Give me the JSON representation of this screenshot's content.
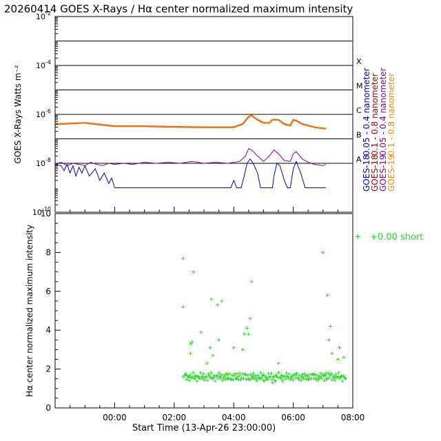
{
  "chart_data": [
    {
      "type": "line",
      "title": "20260414 GOES X-Rays / Hα center normalized maximum intensity",
      "ylabel": "GOES X-Rays Watts m⁻²",
      "yscale": "log",
      "ylim": [
        1e-10,
        0.01
      ],
      "y_ticks": [
        {
          "value": 1e-10,
          "base": "10",
          "exp": "-10"
        },
        {
          "value": 1e-08,
          "base": "10",
          "exp": "-8"
        },
        {
          "value": 1e-06,
          "base": "10",
          "exp": "-6"
        },
        {
          "value": 0.0001,
          "base": "10",
          "exp": "-4"
        },
        {
          "value": 0.01,
          "base": "10",
          "exp": "-2"
        }
      ],
      "xlim_hours": [
        -1.0,
        9.0
      ],
      "flare_class_lines": [
        1e-08,
        1e-07,
        1e-06,
        1e-05,
        0.0001,
        0.001
      ],
      "flare_classes": [
        {
          "label": "A",
          "value": 1e-08
        },
        {
          "label": "B",
          "value": 1e-07
        },
        {
          "label": "C",
          "value": 1e-06
        },
        {
          "label": "M",
          "value": 1e-05
        },
        {
          "label": "X",
          "value": 0.0001
        }
      ],
      "series": [
        {
          "name": "GOES-18 0.05 - 0.4 nanometer",
          "color": "#0000cc",
          "x": [
            -1.0,
            -0.8,
            -0.7,
            -0.6,
            -0.5,
            -0.4,
            -0.3,
            -0.2,
            -0.1,
            0.0,
            0.15,
            0.35,
            0.5,
            0.65,
            0.8,
            0.9,
            1.0,
            1.2,
            1.4,
            1.6,
            1.8,
            2.0,
            2.3,
            2.6,
            3.0,
            3.5,
            4.0,
            4.2,
            4.5,
            4.9,
            5.0,
            5.1,
            5.25,
            5.35,
            5.45,
            5.55,
            5.65,
            5.8,
            5.9,
            6.0,
            6.1,
            6.2,
            6.3,
            6.35,
            6.45,
            6.55,
            6.7,
            6.8,
            6.9,
            7.0,
            7.1,
            7.25,
            7.4,
            7.6,
            7.8,
            8.0,
            8.1
          ],
          "y": [
            9e-09,
            8e-09,
            5e-09,
            9e-09,
            4e-09,
            8e-09,
            3e-09,
            7e-09,
            4e-09,
            8e-09,
            3e-09,
            6e-09,
            2e-09,
            4e-09,
            1.5e-09,
            2.5e-09,
            1e-09,
            1e-09,
            1e-09,
            1e-09,
            1e-09,
            1e-09,
            1e-09,
            1e-09,
            1e-09,
            1e-09,
            1e-09,
            1e-09,
            1e-09,
            1e-09,
            2e-09,
            1e-09,
            1e-09,
            3e-09,
            1e-08,
            1.5e-08,
            1e-08,
            4e-09,
            1e-09,
            1e-09,
            1e-09,
            1e-09,
            1e-09,
            3e-09,
            1e-08,
            8e-09,
            2e-09,
            1e-09,
            1e-09,
            6e-09,
            1.2e-08,
            4e-09,
            1e-09,
            1e-09,
            1e-09,
            1e-09,
            1e-09
          ]
        },
        {
          "name": "GOES-18 0.1 - 0.8 nanometer",
          "color": "#aa0000",
          "x": [
            -1.0,
            0.0,
            1.0,
            2.0,
            3.0,
            4.0,
            5.0,
            5.3,
            5.5,
            5.6,
            5.8,
            6.0,
            6.2,
            6.3,
            6.5,
            6.7,
            6.9,
            7.0,
            7.1,
            7.3,
            7.5,
            7.7,
            8.0,
            8.1
          ],
          "y": [
            4e-07,
            4.5e-07,
            3.3e-07,
            3.3e-07,
            3.1e-07,
            3e-07,
            3e-07,
            4e-07,
            8e-07,
            9e-07,
            6e-07,
            4.5e-07,
            4.5e-07,
            6e-07,
            6e-07,
            4e-07,
            3.5e-07,
            6e-07,
            5.5e-07,
            4e-07,
            3.5e-07,
            3e-07,
            2.7e-07,
            2.6e-07
          ]
        },
        {
          "name": "GOES-19 0.05 - 0.4 nanometer",
          "color": "#880088",
          "x": [
            -1.0,
            -0.8,
            -0.6,
            -0.4,
            -0.2,
            0.0,
            0.2,
            0.4,
            0.6,
            0.8,
            1.0,
            1.3,
            1.6,
            2.0,
            2.4,
            2.8,
            3.2,
            3.6,
            4.0,
            4.4,
            4.8,
            5.2,
            5.4,
            5.5,
            5.6,
            5.8,
            6.0,
            6.2,
            6.35,
            6.5,
            6.7,
            6.9,
            7.0,
            7.1,
            7.3,
            7.5,
            7.7,
            8.0,
            8.1
          ],
          "y": [
            9e-09,
            1.1e-08,
            8e-09,
            1e-08,
            9e-09,
            8e-09,
            1.1e-08,
            9e-09,
            8e-09,
            1e-08,
            9e-09,
            1e-08,
            9e-09,
            1.1e-08,
            1e-08,
            1.1e-08,
            1e-08,
            1.2e-08,
            1e-08,
            1.1e-08,
            1e-08,
            1.2e-08,
            2e-08,
            4e-08,
            3.5e-08,
            2e-08,
            1.2e-08,
            2e-08,
            3.5e-08,
            2.5e-08,
            1.3e-08,
            1.2e-08,
            2.5e-08,
            3e-08,
            1.5e-08,
            1.1e-08,
            9e-09,
            8e-09,
            9e-09
          ]
        },
        {
          "name": "GOES-19 0.1 - 0.8 nanometer",
          "color": "#ff8800",
          "x": [
            -1.0,
            0.0,
            1.0,
            2.0,
            3.0,
            4.0,
            5.0,
            5.3,
            5.5,
            5.6,
            5.8,
            6.0,
            6.2,
            6.3,
            6.5,
            6.7,
            6.9,
            7.0,
            7.1,
            7.3,
            7.5,
            7.7,
            8.0,
            8.1
          ],
          "y": [
            4e-07,
            4.5e-07,
            3.3e-07,
            3.3e-07,
            3.1e-07,
            3e-07,
            3e-07,
            4e-07,
            8e-07,
            9e-07,
            6e-07,
            4.5e-07,
            4.5e-07,
            6e-07,
            6e-07,
            4e-07,
            3.5e-07,
            6e-07,
            5.5e-07,
            4e-07,
            3.5e-07,
            3e-07,
            2.7e-07,
            2.6e-07
          ]
        }
      ],
      "legend": [
        {
          "sat": "GOES-18",
          "range": "0.05 - 0.4 nanometer",
          "color": "#0000cc"
        },
        {
          "sat": "GOES-18",
          "range": "0.1  - 0.8 nanometer",
          "color": "#aa0000"
        },
        {
          "sat": "GOES-19",
          "range": "0.05 - 0.4 nanometer",
          "color": "#880088"
        },
        {
          "sat": "GOES-19",
          "range": "0.1  - 0.8 nanometer",
          "color": "#ff8800"
        }
      ]
    },
    {
      "type": "scatter",
      "title": "",
      "xlabel": "Start Time (13-Apr-26 23:00:00)",
      "ylabel": "Hα center normalized maximum intensity",
      "ylim": [
        0,
        10
      ],
      "y_ticks": [
        0,
        2,
        4,
        6,
        8,
        10
      ],
      "xlim_hours": [
        -1.0,
        9.0
      ],
      "x_ticks_hours": [
        1,
        3,
        5,
        7,
        9
      ],
      "x_tick_labels": [
        "00:00",
        "02:00",
        "04:00",
        "06:00",
        "08:00"
      ],
      "legend_label": "+0.00 short",
      "legend_marker": "+",
      "color": "#22dd22",
      "scatter_points": [
        [
          3.3,
          7.7
        ],
        [
          3.3,
          5.2
        ],
        [
          3.3,
          1.6
        ],
        [
          3.4,
          1.7
        ],
        [
          3.5,
          1.6
        ],
        [
          3.55,
          3.3
        ],
        [
          3.6,
          3.4
        ],
        [
          3.55,
          2.8
        ],
        [
          3.65,
          7.0
        ],
        [
          3.7,
          1.5
        ],
        [
          3.8,
          1.6
        ],
        [
          3.9,
          3.9
        ],
        [
          3.95,
          1.5
        ],
        [
          4.1,
          2.3
        ],
        [
          4.2,
          3.1
        ],
        [
          4.25,
          5.6
        ],
        [
          4.3,
          2.7
        ],
        [
          4.45,
          5.3
        ],
        [
          4.5,
          3.5
        ],
        [
          4.55,
          1.7
        ],
        [
          4.6,
          5.5
        ],
        [
          4.7,
          1.6
        ],
        [
          4.8,
          1.5
        ],
        [
          5.0,
          3.1
        ],
        [
          5.1,
          1.5
        ],
        [
          5.2,
          1.8
        ],
        [
          5.3,
          3.0
        ],
        [
          5.35,
          3.8
        ],
        [
          5.45,
          4.1
        ],
        [
          5.5,
          3.8
        ],
        [
          5.55,
          4.6
        ],
        [
          5.6,
          6.5
        ],
        [
          5.65,
          1.6
        ],
        [
          5.75,
          1.5
        ],
        [
          5.9,
          1.5
        ],
        [
          6.0,
          1.4
        ],
        [
          6.1,
          1.5
        ],
        [
          6.3,
          1.3
        ],
        [
          6.4,
          1.4
        ],
        [
          6.5,
          2.3
        ],
        [
          6.6,
          1.5
        ],
        [
          6.8,
          1.6
        ],
        [
          6.95,
          1.6
        ],
        [
          7.1,
          1.7
        ],
        [
          7.3,
          1.6
        ],
        [
          7.5,
          1.6
        ],
        [
          7.7,
          1.7
        ],
        [
          7.9,
          1.6
        ],
        [
          8.0,
          8.0
        ],
        [
          8.05,
          1.7
        ],
        [
          8.1,
          1.8
        ],
        [
          8.15,
          5.8
        ],
        [
          8.2,
          3.5
        ],
        [
          8.25,
          4.2
        ],
        [
          8.3,
          2.8
        ],
        [
          8.4,
          1.6
        ],
        [
          8.5,
          2.5
        ],
        [
          8.55,
          3.1
        ],
        [
          8.6,
          1.6
        ],
        [
          8.7,
          2.6
        ],
        [
          8.75,
          1.5
        ]
      ],
      "scatter_band": {
        "x_start": 3.35,
        "x_end": 8.75,
        "y_center": 1.6,
        "y_spread": 0.15,
        "count": 170
      }
    }
  ]
}
